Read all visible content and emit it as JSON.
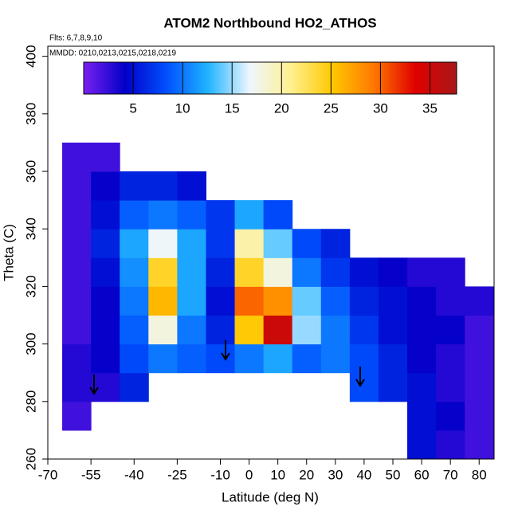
{
  "chart_data": {
    "type": "heatmap",
    "title": "ATOM2 Northbound HO2_ATHOS",
    "annotations": [
      "Flts: 6,7,8,9,10",
      "MMDD: 0210,0213,0215,0218,0219"
    ],
    "x_label": "Latitude (deg N)",
    "y_label": "Theta (C)",
    "x_bins": [
      -65,
      -55,
      -45,
      -35,
      -25,
      -15,
      -5,
      5,
      15,
      25,
      35,
      45,
      55,
      65,
      75,
      85
    ],
    "y_bins": [
      260,
      270,
      280,
      290,
      300,
      310,
      320,
      330,
      340,
      350,
      360,
      370
    ],
    "z": [
      [
        null,
        null,
        null,
        null,
        null,
        null,
        null,
        null,
        null,
        null,
        null,
        null,
        5,
        3,
        2
      ],
      [
        2,
        null,
        null,
        null,
        null,
        null,
        null,
        null,
        null,
        null,
        null,
        null,
        5,
        4,
        2
      ],
      [
        3,
        3,
        6,
        null,
        null,
        null,
        null,
        null,
        null,
        null,
        8,
        6,
        5,
        3,
        2
      ],
      [
        3,
        4,
        8,
        10,
        9,
        8,
        10,
        12,
        9,
        10,
        8,
        6,
        4,
        3,
        2
      ],
      [
        2,
        4,
        9,
        18,
        10,
        6,
        25,
        35,
        15,
        10,
        7,
        5,
        4,
        4,
        2
      ],
      [
        2,
        4,
        10,
        26,
        12,
        5,
        30,
        28,
        14,
        9,
        6,
        5,
        4,
        3,
        3
      ],
      [
        2,
        5,
        11,
        24,
        12,
        6,
        24,
        18,
        10,
        7,
        5,
        4,
        3,
        3,
        null
      ],
      [
        2,
        6,
        12,
        17,
        12,
        7,
        20,
        14,
        8,
        6,
        null,
        null,
        null,
        null,
        null
      ],
      [
        2,
        5,
        9,
        10,
        9,
        7,
        12,
        8,
        null,
        null,
        null,
        null,
        null,
        null,
        null
      ],
      [
        2,
        4,
        6,
        6,
        5,
        null,
        null,
        null,
        null,
        null,
        null,
        null,
        null,
        null,
        null
      ],
      [
        2,
        2,
        null,
        null,
        null,
        null,
        null,
        null,
        null,
        null,
        null,
        null,
        null,
        null,
        null
      ]
    ],
    "colorscale": [
      "#7b20f0",
      "#0000c8",
      "#0050ff",
      "#20b4ff",
      "#eef6ff",
      "#fff090",
      "#ffc800",
      "#ff7800",
      "#e00000",
      "#a81818"
    ],
    "zlim": [
      0,
      37.7
    ],
    "zticks": [
      5,
      10,
      15,
      20,
      25,
      30,
      35
    ],
    "xlim": [
      -70,
      85.2
    ],
    "xticks": [
      -70,
      -55,
      -40,
      -25,
      -10,
      0,
      10,
      20,
      30,
      40,
      50,
      60,
      70,
      80
    ],
    "ylim": [
      260,
      403.5
    ],
    "yticks": [
      260,
      280,
      300,
      320,
      340,
      360,
      380,
      400
    ]
  }
}
